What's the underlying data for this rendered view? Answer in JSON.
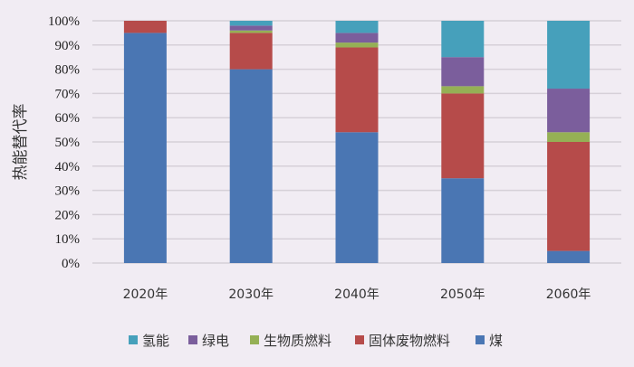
{
  "chart_data": {
    "type": "bar",
    "stacked": true,
    "title": "",
    "xlabel": "",
    "ylabel": "热能替代率",
    "ylim": [
      0,
      100
    ],
    "yticks": [
      "0%",
      "10%",
      "20%",
      "30%",
      "40%",
      "50%",
      "60%",
      "70%",
      "80%",
      "90%",
      "100%"
    ],
    "grid": true,
    "legend_position": "bottom",
    "categories": [
      "2020年",
      "2030年",
      "2040年",
      "2050年",
      "2060年"
    ],
    "series": [
      {
        "name": "煤",
        "color": "#4a76b3",
        "values": [
          95,
          80,
          54,
          35,
          5
        ]
      },
      {
        "name": "固体废物燃料",
        "color": "#b64b4a",
        "values": [
          5,
          15,
          35,
          35,
          45
        ]
      },
      {
        "name": "生物质燃料",
        "color": "#95b055",
        "values": [
          0,
          1,
          2,
          3,
          4
        ]
      },
      {
        "name": "绿电",
        "color": "#7b5e9c",
        "values": [
          0,
          2,
          4,
          12,
          18
        ]
      },
      {
        "name": "氢能",
        "color": "#46a0bb",
        "values": [
          0,
          2,
          5,
          15,
          28
        ]
      }
    ],
    "legend_order": [
      "氢能",
      "绿电",
      "生物质燃料",
      "固体废物燃料",
      "煤"
    ]
  }
}
